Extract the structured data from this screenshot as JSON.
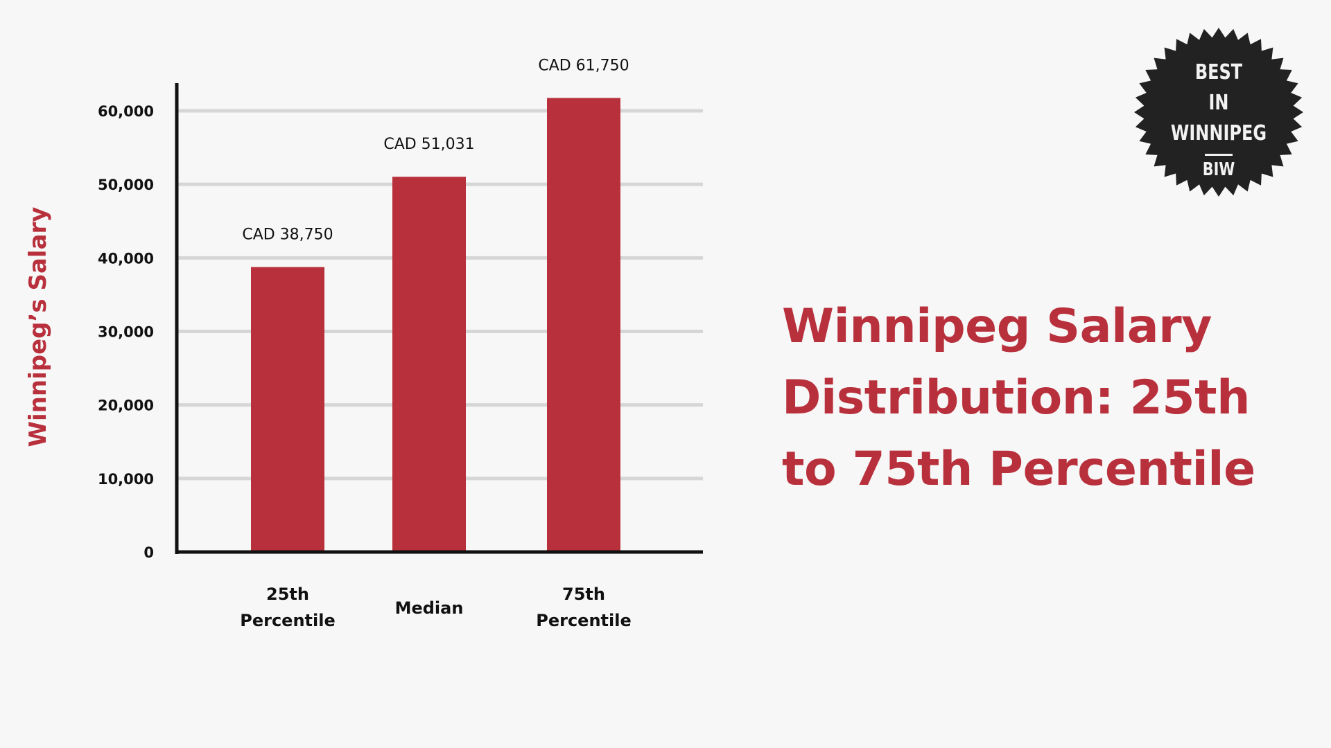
{
  "title": "Winnipeg Salary Distribution: 25th to 75th Percentile",
  "badge": {
    "line1": "BEST",
    "line2": "IN",
    "line3": "WINNIPEG",
    "line4": "BIW"
  },
  "colors": {
    "bar": "#b8303c",
    "title": "#b8303c",
    "grid": "#d6d6d6",
    "axis": "#111111",
    "badge": "#222222"
  },
  "chart_data": {
    "type": "bar",
    "categories": [
      "25th Percentile",
      "Median",
      "75th Percentile"
    ],
    "category_lines": [
      [
        "25th",
        "Percentile"
      ],
      [
        "Median"
      ],
      [
        "75th",
        "Percentile"
      ]
    ],
    "values": [
      38750,
      51031,
      61750
    ],
    "data_labels": [
      "CAD 38,750",
      "CAD 51,031",
      "CAD 61,750"
    ],
    "ylabel": "Winnipeg’s Salary",
    "xlabel": "",
    "ylim": [
      0,
      60000
    ],
    "yticks": [
      0,
      10000,
      20000,
      30000,
      40000,
      50000,
      60000
    ],
    "ytick_labels": [
      "0",
      "10,000",
      "20,000",
      "30,000",
      "40,000",
      "50,000",
      "60,000"
    ],
    "grid": true,
    "legend": "none"
  }
}
